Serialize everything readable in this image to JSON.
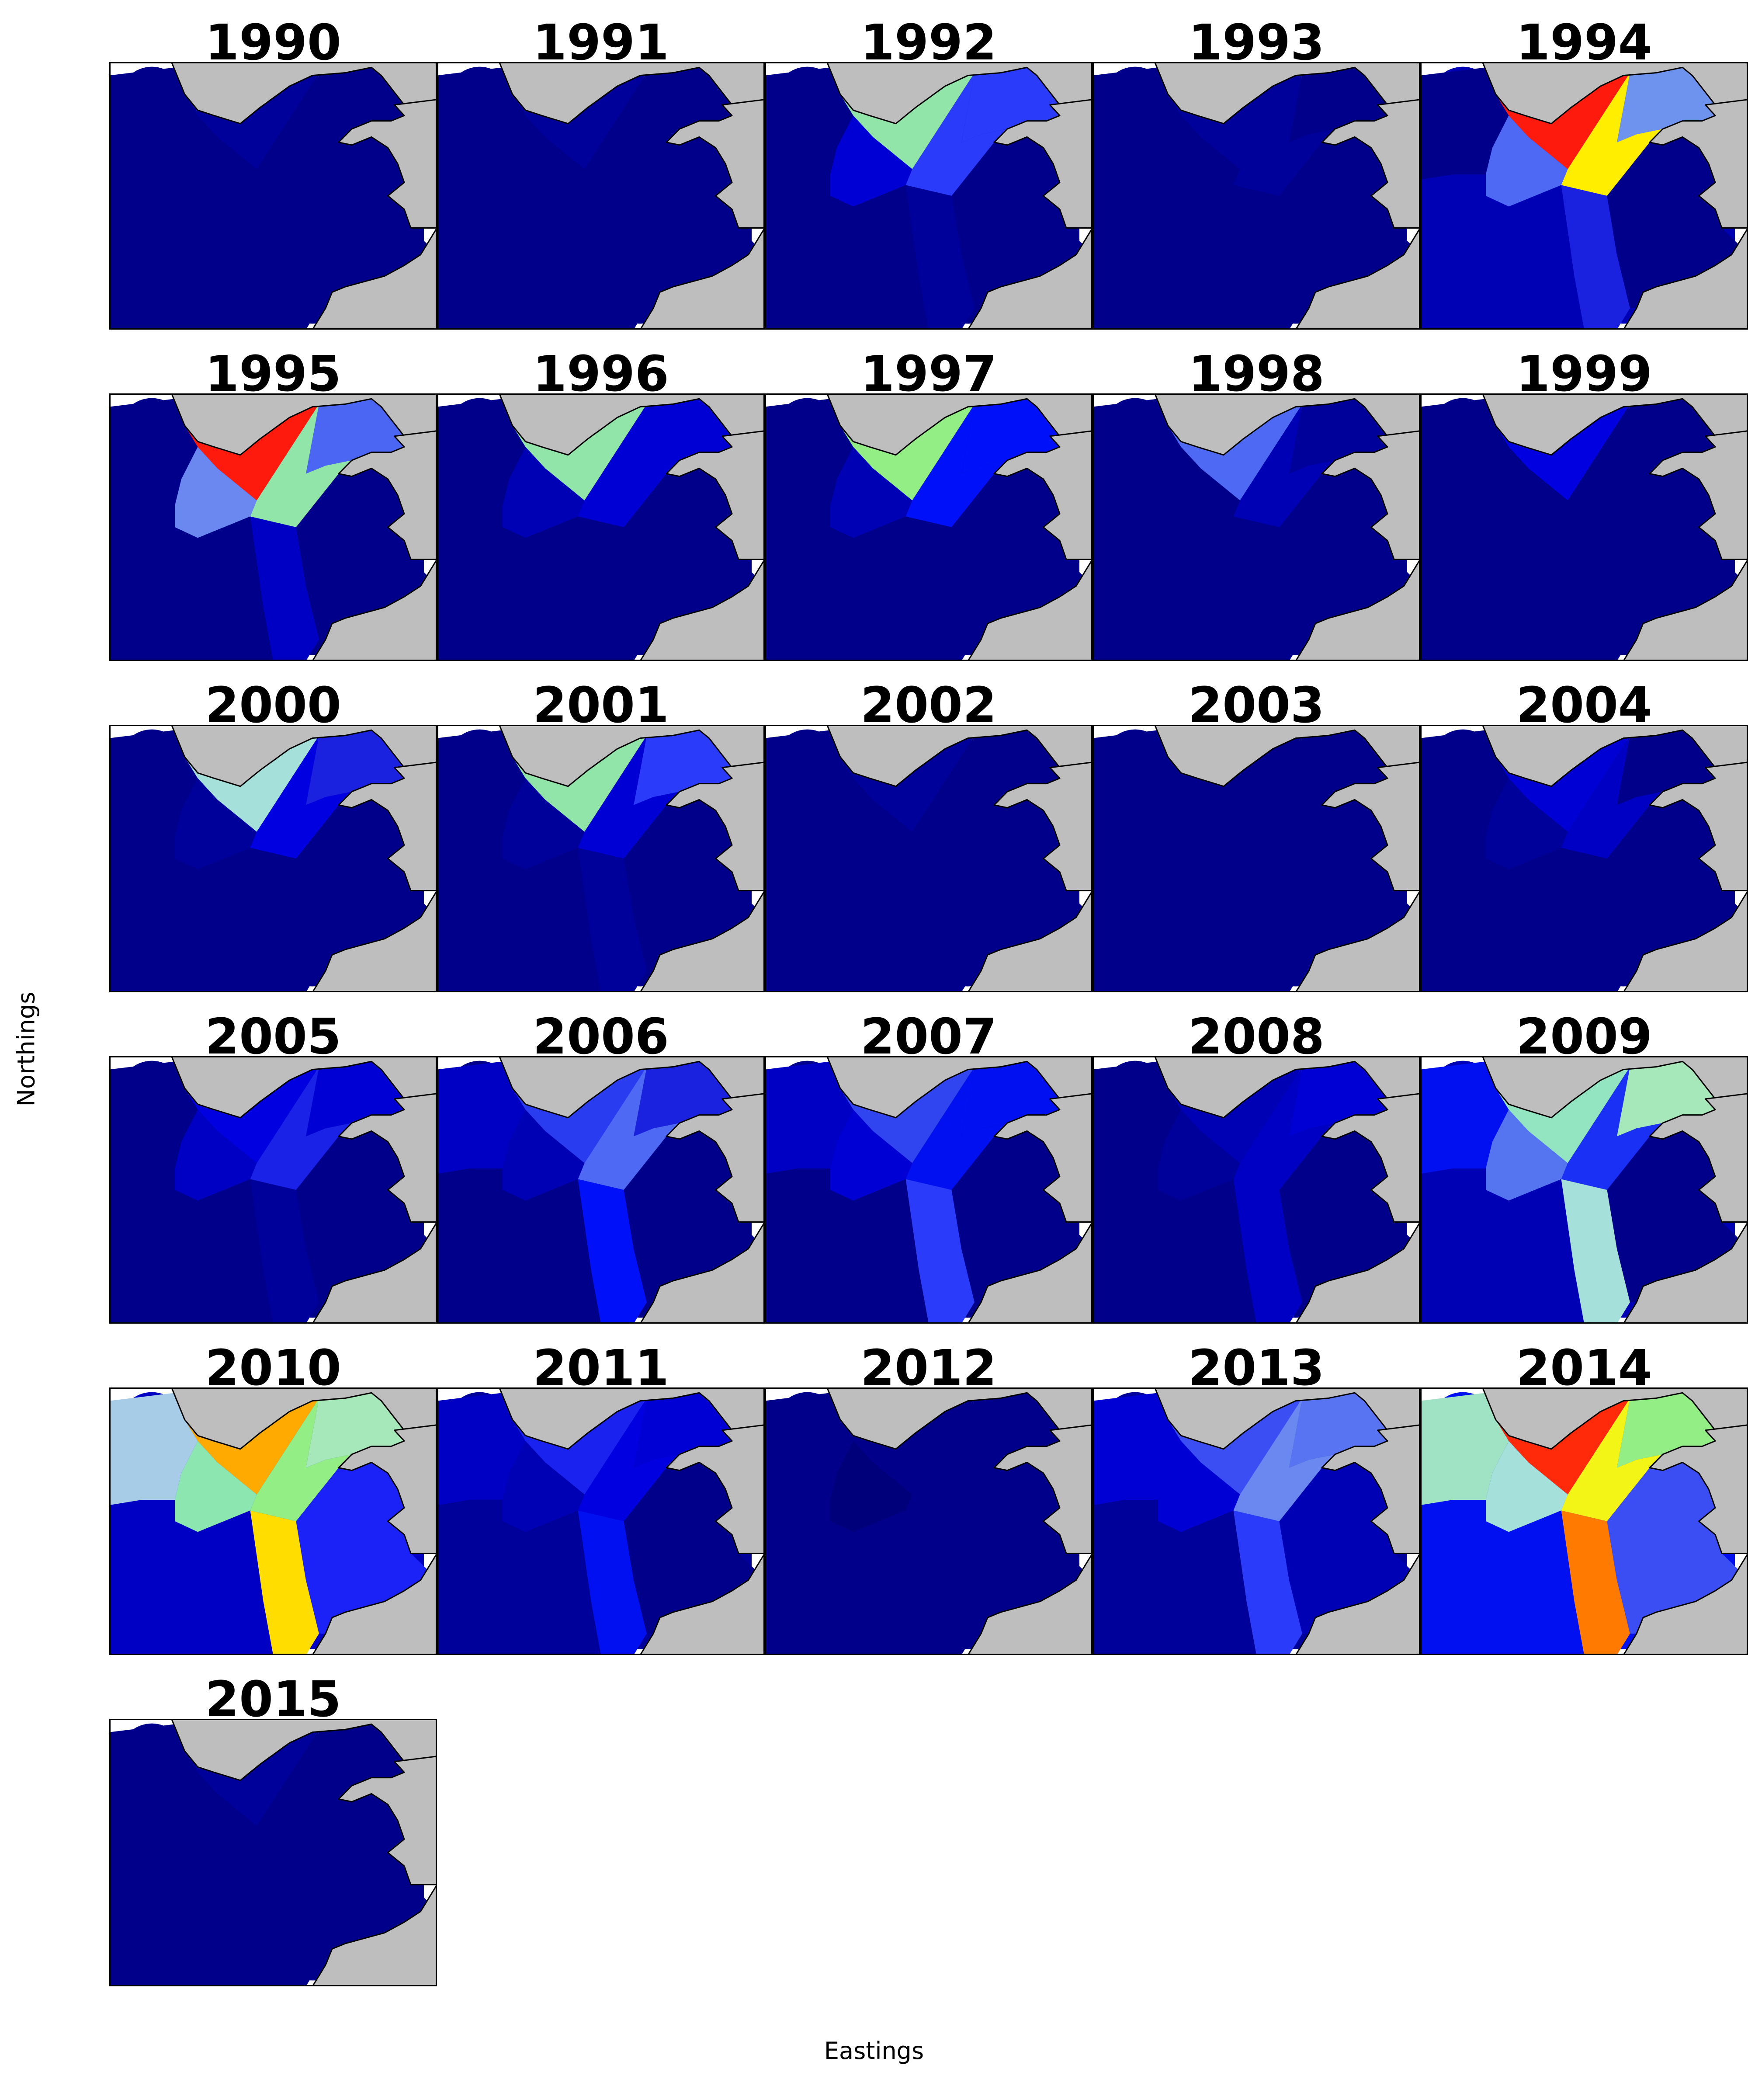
{
  "axes": {
    "xlabel": "Eastings",
    "ylabel": "Northings"
  },
  "colors": {
    "land": "#bebebe",
    "coastline": "#000000",
    "frame": "#000000",
    "background": "#ffffff",
    "colormap": "jet"
  },
  "map_panels": [
    {
      "year": "1990",
      "regions": {
        "north": "#00009a",
        "central": "#00008b",
        "west": "#00008b",
        "south": "#00008b",
        "southwest": "#00008b",
        "east": "#00008b",
        "farwest": "#00008b",
        "estuary": "#00008b"
      }
    },
    {
      "year": "1991",
      "regions": {
        "north": "#00009a",
        "central": "#00008b",
        "west": "#00008b",
        "south": "#00008b",
        "southwest": "#00008b",
        "east": "#00008b",
        "farwest": "#00008b",
        "estuary": "#00008b"
      }
    },
    {
      "year": "1992",
      "regions": {
        "north": "#92e5a9",
        "central": "#2a3cfa",
        "west": "#0000d5",
        "south": "#00009a",
        "southwest": "#00008b",
        "east": "#00008b",
        "farwest": "#00008b",
        "estuary": "#2a3cfa"
      }
    },
    {
      "year": "1993",
      "regions": {
        "north": "#00009a",
        "central": "#00009a",
        "west": "#00008b",
        "south": "#00008b",
        "southwest": "#00008b",
        "east": "#00008b",
        "farwest": "#00008b",
        "estuary": "#00008b"
      }
    },
    {
      "year": "1994",
      "regions": {
        "north": "#ff1a0e",
        "central": "#ffee00",
        "west": "#4e6af4",
        "south": "#1a22e0",
        "southwest": "#0000b5",
        "east": "#00008b",
        "farwest": "#00008b",
        "estuary": "#6e93ef"
      }
    },
    {
      "year": "1995",
      "regions": {
        "north": "#ff1a0e",
        "central": "#92e5a9",
        "west": "#6a88f0",
        "south": "#0000c4",
        "southwest": "#00008b",
        "east": "#00008b",
        "farwest": "#00008b",
        "estuary": "#4a66f2"
      }
    },
    {
      "year": "1996",
      "regions": {
        "north": "#92e5a9",
        "central": "#0000d5",
        "west": "#0000b5",
        "south": "#00008b",
        "southwest": "#00008b",
        "east": "#00008b",
        "farwest": "#00008b",
        "estuary": "#0000d5"
      }
    },
    {
      "year": "1997",
      "regions": {
        "north": "#93ee86",
        "central": "#0010f8",
        "west": "#0000b5",
        "south": "#00008b",
        "southwest": "#00008b",
        "east": "#00008b",
        "farwest": "#00008b",
        "estuary": "#0010f8"
      }
    },
    {
      "year": "1998",
      "regions": {
        "north": "#4e6af4",
        "central": "#0000b5",
        "west": "#00008b",
        "south": "#00008b",
        "southwest": "#00008b",
        "east": "#00008b",
        "farwest": "#00008b",
        "estuary": "#00009a"
      }
    },
    {
      "year": "1999",
      "regions": {
        "north": "#0000e0",
        "central": "#00008b",
        "west": "#00008b",
        "south": "#00008b",
        "southwest": "#00008b",
        "east": "#00008b",
        "farwest": "#00008b",
        "estuary": "#00008b"
      }
    },
    {
      "year": "2000",
      "regions": {
        "north": "#a6e0da",
        "central": "#0000e0",
        "west": "#00009a",
        "south": "#00008b",
        "southwest": "#00008b",
        "east": "#00008b",
        "farwest": "#00008b",
        "estuary": "#1a22e0"
      }
    },
    {
      "year": "2001",
      "regions": {
        "north": "#92e5a9",
        "central": "#0000d5",
        "west": "#00009a",
        "south": "#00009a",
        "southwest": "#00008b",
        "east": "#00008b",
        "farwest": "#00008b",
        "estuary": "#2a3cfa"
      }
    },
    {
      "year": "2002",
      "regions": {
        "north": "#00009a",
        "central": "#00008b",
        "west": "#00008b",
        "south": "#00008b",
        "southwest": "#00008b",
        "east": "#00008b",
        "farwest": "#00008b",
        "estuary": "#00008b"
      }
    },
    {
      "year": "2003",
      "regions": {
        "north": "#00008b",
        "central": "#00008b",
        "west": "#00008b",
        "south": "#00008b",
        "southwest": "#00008b",
        "east": "#00008b",
        "farwest": "#00008b",
        "estuary": "#00008b"
      }
    },
    {
      "year": "2004",
      "regions": {
        "north": "#0000d5",
        "central": "#0000c4",
        "west": "#00009a",
        "south": "#00008b",
        "southwest": "#00008b",
        "east": "#00008b",
        "farwest": "#00008b",
        "estuary": "#00008b"
      }
    },
    {
      "year": "2005",
      "regions": {
        "north": "#0000e0",
        "central": "#1a22e8",
        "west": "#0000c4",
        "south": "#00009a",
        "southwest": "#00008b",
        "east": "#00008b",
        "farwest": "#00008b",
        "estuary": "#0000d5"
      }
    },
    {
      "year": "2006",
      "regions": {
        "north": "#2a3cf0",
        "central": "#4e6af4",
        "west": "#0000b5",
        "south": "#0010f8",
        "southwest": "#00008b",
        "east": "#00008b",
        "farwest": "#0000c4",
        "estuary": "#1a22e0"
      }
    },
    {
      "year": "2007",
      "regions": {
        "north": "#3044f0",
        "central": "#0010f0",
        "west": "#0000d5",
        "south": "#2a3cfa",
        "southwest": "#00008b",
        "east": "#00008b",
        "farwest": "#0000c4",
        "estuary": "#0010f0"
      }
    },
    {
      "year": "2008",
      "regions": {
        "north": "#0000b5",
        "central": "#0000c4",
        "west": "#00009a",
        "south": "#0000c4",
        "southwest": "#00008b",
        "east": "#00008b",
        "farwest": "#00008b",
        "estuary": "#0000d5"
      }
    },
    {
      "year": "2009",
      "regions": {
        "north": "#92e5c0",
        "central": "#1a30f4",
        "west": "#5574f0",
        "south": "#a6e0da",
        "southwest": "#0000b5",
        "east": "#00008b",
        "farwest": "#0010f0",
        "estuary": "#a6e8b9"
      }
    },
    {
      "year": "2010",
      "regions": {
        "north": "#ffaa00",
        "central": "#93ee86",
        "west": "#8ce6b0",
        "south": "#ffdd00",
        "southwest": "#0000c4",
        "east": "#1a22f8",
        "farwest": "#a6cce8",
        "estuary": "#a6e8b9"
      }
    },
    {
      "year": "2011",
      "regions": {
        "north": "#1a22f0",
        "central": "#0000e0",
        "west": "#0000b5",
        "south": "#0010f0",
        "southwest": "#00009a",
        "east": "#00008b",
        "farwest": "#0000c4",
        "estuary": "#0000d5"
      }
    },
    {
      "year": "2012",
      "regions": {
        "north": "#00008b",
        "central": "#00008b",
        "west": "#00007a",
        "south": "#00008b",
        "southwest": "#00008b",
        "east": "#00008b",
        "farwest": "#00008b",
        "estuary": "#00008b"
      }
    },
    {
      "year": "2013",
      "regions": {
        "north": "#3a4ef4",
        "central": "#6a88f0",
        "west": "#0000d5",
        "south": "#2a3cfa",
        "southwest": "#00009a",
        "east": "#0000b5",
        "farwest": "#0000d5",
        "estuary": "#5874f2"
      }
    },
    {
      "year": "2014",
      "regions": {
        "north": "#ff2a0a",
        "central": "#f2f515",
        "west": "#a6e0da",
        "south": "#ff7a00",
        "southwest": "#0010f0",
        "east": "#3a4ef4",
        "farwest": "#9fe2c4",
        "estuary": "#93ee86"
      }
    },
    {
      "year": "2015",
      "regions": {
        "north": "#00009a",
        "central": "#00008b",
        "west": "#00008b",
        "south": "#00008b",
        "southwest": "#00008b",
        "east": "#00008b",
        "farwest": "#00008b",
        "estuary": "#00008b"
      }
    }
  ]
}
